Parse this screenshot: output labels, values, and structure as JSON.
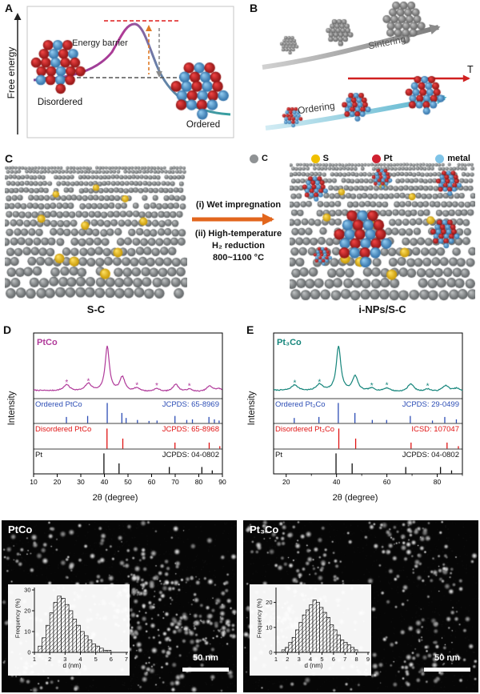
{
  "figure": {
    "panels": {
      "A": {
        "label": "A",
        "ylabel": "Free energy",
        "barrier_label": "Energy barrier",
        "state_left": "Disordered",
        "state_right": "Ordered"
      },
      "B": {
        "label": "B",
        "top_arrow_label": "Sintering",
        "bottom_arrow_label": "Ordering",
        "temperature_axis_label": "T"
      },
      "C": {
        "label": "C",
        "legend": [
          {
            "label": "C",
            "color": "#8f9294"
          },
          {
            "label": "S",
            "color": "#f0c000"
          },
          {
            "label": "Pt",
            "color": "#cf2030"
          },
          {
            "label": "metal",
            "color": "#7fc4e8"
          }
        ],
        "step_1": "(i) Wet impregnation",
        "step_2": "(ii) High-temperature",
        "step_3": "H₂ reduction",
        "step_4": "800~1100 °C",
        "caption_left": "S-C",
        "caption_right": "i-NPs/S-C"
      },
      "D": {
        "label": "D",
        "sample": "PtCo"
      },
      "E": {
        "label": "E",
        "sample": "Pt₃Co"
      },
      "F": {
        "label": "PtCo",
        "scale_bar": "50 nm"
      },
      "G": {
        "label": "Pt₃Co",
        "scale_bar": "50 nm"
      }
    }
  },
  "chart_data": [
    {
      "type": "line",
      "panel": "D",
      "title": "XRD pattern of PtCo nanoparticles",
      "xlabel": "2θ (degree)",
      "ylabel": "Intensity",
      "xlim": [
        10,
        90
      ],
      "x_ticks": [
        10,
        20,
        30,
        40,
        50,
        60,
        70,
        80,
        90
      ],
      "curve_color": "#b03a9a",
      "superlattice_marker": "*",
      "peaks": [
        {
          "x": 24.0,
          "h": 0.14,
          "w": 1.6,
          "superlattice": true
        },
        {
          "x": 33.2,
          "h": 0.17,
          "w": 1.6,
          "superlattice": true
        },
        {
          "x": 41.2,
          "h": 1.0,
          "w": 1.1
        },
        {
          "x": 47.6,
          "h": 0.32,
          "w": 1.3
        },
        {
          "x": 53.8,
          "h": 0.08,
          "w": 1.7,
          "superlattice": true
        },
        {
          "x": 62.2,
          "h": 0.07,
          "w": 1.7,
          "superlattice": true
        },
        {
          "x": 70.2,
          "h": 0.17,
          "w": 1.5
        },
        {
          "x": 76.0,
          "h": 0.06,
          "w": 1.7,
          "superlattice": true
        },
        {
          "x": 84.6,
          "h": 0.13,
          "w": 1.7
        },
        {
          "x": 88.6,
          "h": 0.07,
          "w": 1.7
        }
      ],
      "reference_rows": [
        {
          "name": "Ordered PtCo",
          "id": "JCPDS: 65-8969",
          "color": "#2c4db5",
          "sticks": [
            [
              23.9,
              0.3
            ],
            [
              32.9,
              0.35
            ],
            [
              41.2,
              1.0
            ],
            [
              47.4,
              0.5
            ],
            [
              49.2,
              0.25
            ],
            [
              54.0,
              0.15
            ],
            [
              58.9,
              0.1
            ],
            [
              62.3,
              0.12
            ],
            [
              69.9,
              0.35
            ],
            [
              74.9,
              0.15
            ],
            [
              77.3,
              0.18
            ],
            [
              84.3,
              0.3
            ],
            [
              86.6,
              0.18
            ],
            [
              88.6,
              0.12
            ]
          ]
        },
        {
          "name": "Disordered PtCo",
          "id": "JCPDS: 65-8968",
          "color": "#e01414",
          "sticks": [
            [
              41.1,
              1.0
            ],
            [
              47.8,
              0.5
            ],
            [
              69.9,
              0.3
            ],
            [
              84.4,
              0.3
            ],
            [
              88.9,
              0.12
            ]
          ]
        },
        {
          "name": "Pt",
          "id": "JCPDS: 04-0802",
          "color": "#111111",
          "sticks": [
            [
              39.8,
              1.0
            ],
            [
              46.2,
              0.5
            ],
            [
              67.5,
              0.32
            ],
            [
              81.3,
              0.32
            ],
            [
              85.7,
              0.15
            ]
          ]
        }
      ]
    },
    {
      "type": "line",
      "panel": "E",
      "title": "XRD pattern of Pt₃Co nanoparticles",
      "xlabel": "2θ (degree)",
      "ylabel": "Intensity",
      "xlim": [
        15,
        90
      ],
      "x_ticks": [
        20,
        40,
        60,
        80
      ],
      "x_minor_ticks": [
        30,
        50,
        70,
        90
      ],
      "curve_color": "#15857b",
      "superlattice_marker": "*",
      "peaks": [
        {
          "x": 23.4,
          "h": 0.13,
          "w": 1.6,
          "superlattice": true
        },
        {
          "x": 33.2,
          "h": 0.15,
          "w": 1.6,
          "superlattice": true
        },
        {
          "x": 40.8,
          "h": 1.0,
          "w": 1.1
        },
        {
          "x": 47.4,
          "h": 0.34,
          "w": 1.3
        },
        {
          "x": 54.0,
          "h": 0.07,
          "w": 1.7,
          "superlattice": true
        },
        {
          "x": 60.0,
          "h": 0.08,
          "w": 1.7,
          "superlattice": true
        },
        {
          "x": 69.5,
          "h": 0.18,
          "w": 1.5
        },
        {
          "x": 76.2,
          "h": 0.06,
          "w": 1.7,
          "superlattice": true
        },
        {
          "x": 83.3,
          "h": 0.14,
          "w": 1.7
        },
        {
          "x": 87.8,
          "h": 0.08,
          "w": 1.7
        }
      ],
      "reference_rows": [
        {
          "name": "Ordered Pt₃Co",
          "id": "JCPDS: 29-0499",
          "color": "#2c4db5",
          "sticks": [
            [
              23.2,
              0.25
            ],
            [
              33.0,
              0.3
            ],
            [
              40.7,
              1.0
            ],
            [
              47.3,
              0.5
            ],
            [
              54.2,
              0.15
            ],
            [
              59.9,
              0.15
            ],
            [
              69.3,
              0.35
            ],
            [
              78.1,
              0.12
            ],
            [
              83.0,
              0.3
            ],
            [
              87.6,
              0.18
            ]
          ]
        },
        {
          "name": "Disordered Pt₃Co",
          "id": "ICSD: 107047",
          "color": "#e01414",
          "sticks": [
            [
              40.9,
              1.0
            ],
            [
              47.6,
              0.5
            ],
            [
              69.6,
              0.3
            ],
            [
              83.9,
              0.3
            ],
            [
              88.4,
              0.12
            ]
          ]
        },
        {
          "name": "Pt",
          "id": "JCPDS: 04-0802",
          "color": "#111111",
          "sticks": [
            [
              39.8,
              1.0
            ],
            [
              46.2,
              0.5
            ],
            [
              67.5,
              0.32
            ],
            [
              81.3,
              0.32
            ],
            [
              85.7,
              0.15
            ]
          ]
        }
      ]
    },
    {
      "type": "bar",
      "panel": "F",
      "title": "PtCo particle size distribution",
      "xlabel": "d (nm)",
      "ylabel": "Frequency (%)",
      "xlim": [
        1,
        7
      ],
      "x_ticks": [
        1,
        2,
        3,
        4,
        5,
        6,
        7
      ],
      "ylim": [
        0,
        30
      ],
      "y_ticks": [
        0,
        10,
        20,
        30
      ],
      "bin_start": 1.25,
      "bin_width": 0.25,
      "values": [
        3,
        7,
        13,
        19,
        24,
        27,
        26,
        23,
        20,
        16,
        13,
        10,
        8,
        6,
        4,
        3,
        2,
        1,
        1
      ]
    },
    {
      "type": "bar",
      "panel": "G",
      "title": "Pt₃Co particle size distribution",
      "xlabel": "d (nm)",
      "ylabel": "Frequency (%)",
      "xlim": [
        1,
        9
      ],
      "x_ticks": [
        1,
        2,
        3,
        4,
        5,
        6,
        7,
        8,
        9
      ],
      "ylim": [
        0,
        25
      ],
      "y_ticks": [
        0,
        10,
        20
      ],
      "bin_start": 1.5,
      "bin_width": 0.3,
      "values": [
        1,
        2,
        4,
        6,
        9,
        12,
        15,
        17,
        19,
        21,
        20,
        18,
        16,
        14,
        11,
        9,
        7,
        5,
        4,
        3,
        2,
        1
      ]
    }
  ]
}
